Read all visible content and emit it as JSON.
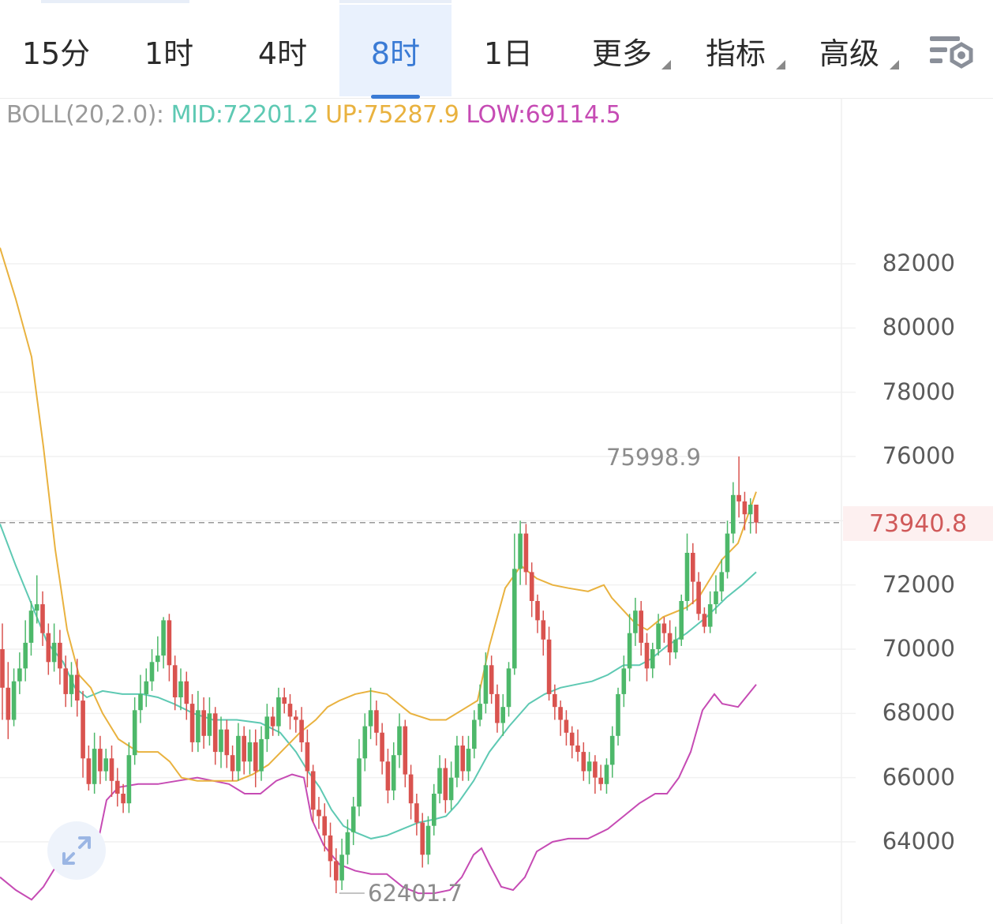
{
  "timeframe_tabs": [
    {
      "label": "15分",
      "active": false
    },
    {
      "label": "1时",
      "active": false
    },
    {
      "label": "4时",
      "active": false
    },
    {
      "label": "8时",
      "active": true
    },
    {
      "label": "1日",
      "active": false
    },
    {
      "label": "更多",
      "active": false,
      "dropdown": true
    },
    {
      "label": "指标",
      "active": false,
      "dropdown": true
    },
    {
      "label": "高级",
      "active": false,
      "dropdown": true
    }
  ],
  "settings_icon": "chart-settings-icon",
  "expand_icon": "expand-arrows-icon",
  "legend": {
    "name": "BOLL(20,2.0):",
    "mid": "MID:72201.2",
    "up": "UP:75287.9",
    "low": "LOW:69114.5"
  },
  "current_price": "73940.8",
  "max_label": "75998.9",
  "min_label": "62401.7",
  "colors": {
    "up_candle": "#4db86a",
    "down_candle": "#d9534f",
    "mid": "#5ec9b3",
    "upper": "#e9b23f",
    "lower": "#c64bb4",
    "active_tab": "#3a7bd5",
    "current_price": "#d05959"
  },
  "chart_data": {
    "type": "candlestick",
    "indicator": "BOLL(20,2.0)",
    "y_ticks": [
      82000,
      80000,
      78000,
      76000,
      74000,
      72000,
      70000,
      68000,
      66000,
      64000
    ],
    "y_tick_labels": [
      "82000",
      "80000",
      "78000",
      "76000",
      "72000",
      "70000",
      "68000",
      "66000",
      "64000"
    ],
    "ylim": [
      61800,
      84300
    ],
    "current_price": 73940.8,
    "max": 75998.9,
    "min": 62401.7,
    "candles": [
      [
        70000,
        68800,
        70800,
        67800
      ],
      [
        68800,
        67800,
        69600,
        67200
      ],
      [
        67800,
        69000,
        69400,
        67600
      ],
      [
        69000,
        69400,
        69900,
        68600
      ],
      [
        69400,
        70200,
        70900,
        69000
      ],
      [
        70200,
        71200,
        71500,
        69800
      ],
      [
        71200,
        71400,
        72300,
        70800
      ],
      [
        71400,
        70500,
        71800,
        70100
      ],
      [
        70500,
        69600,
        70800,
        69200
      ],
      [
        69600,
        70200,
        70800,
        69300
      ],
      [
        70200,
        69400,
        70600,
        68900
      ],
      [
        69400,
        68600,
        69800,
        68200
      ],
      [
        68600,
        69200,
        69600,
        68200
      ],
      [
        69200,
        68400,
        69700,
        67900
      ],
      [
        68400,
        66600,
        68700,
        66000
      ],
      [
        66600,
        65800,
        67000,
        65600
      ],
      [
        65800,
        66900,
        67400,
        65500
      ],
      [
        66900,
        66200,
        67300,
        65800
      ],
      [
        66200,
        66600,
        66900,
        65900
      ],
      [
        66600,
        65900,
        67000,
        65400
      ],
      [
        65900,
        65500,
        66300,
        65100
      ],
      [
        65500,
        65200,
        65800,
        64900
      ],
      [
        65200,
        66700,
        67100,
        64900
      ],
      [
        66700,
        68100,
        68500,
        66400
      ],
      [
        68100,
        68600,
        69200,
        67700
      ],
      [
        68600,
        69000,
        69400,
        68200
      ],
      [
        69000,
        69600,
        70000,
        68700
      ],
      [
        69600,
        69800,
        70400,
        69300
      ],
      [
        69800,
        70900,
        71000,
        69400
      ],
      [
        70900,
        69500,
        71100,
        69000
      ],
      [
        69500,
        68500,
        69800,
        68100
      ],
      [
        68500,
        69000,
        69400,
        68100
      ],
      [
        69000,
        68300,
        69300,
        67800
      ],
      [
        68300,
        67100,
        68600,
        66800
      ],
      [
        67100,
        68100,
        68700,
        66800
      ],
      [
        68100,
        67300,
        68500,
        66900
      ],
      [
        67300,
        68000,
        68500,
        67000
      ],
      [
        68000,
        66800,
        68200,
        66400
      ],
      [
        66800,
        67500,
        67900,
        66300
      ],
      [
        67500,
        66700,
        67800,
        66300
      ],
      [
        66700,
        66200,
        67000,
        65900
      ],
      [
        66200,
        67300,
        67700,
        65900
      ],
      [
        67300,
        66500,
        67600,
        66100
      ],
      [
        66500,
        67100,
        67500,
        66100
      ],
      [
        67100,
        66200,
        67500,
        65700
      ],
      [
        66200,
        67200,
        67600,
        65900
      ],
      [
        67200,
        67900,
        68300,
        66800
      ],
      [
        67900,
        67600,
        68200,
        67300
      ],
      [
        67600,
        68500,
        68800,
        67300
      ],
      [
        68500,
        68300,
        68800,
        68000
      ],
      [
        68300,
        67900,
        68600,
        67500
      ],
      [
        67900,
        67800,
        68100,
        67400
      ],
      [
        67800,
        67100,
        68200,
        66800
      ],
      [
        67100,
        66200,
        67500,
        65700
      ],
      [
        66200,
        65000,
        66400,
        64600
      ],
      [
        65000,
        64800,
        65400,
        64400
      ],
      [
        64800,
        64200,
        65200,
        63700
      ],
      [
        64200,
        63400,
        64600,
        62900
      ],
      [
        63400,
        62800,
        63800,
        62401.7
      ],
      [
        62800,
        63600,
        64100,
        62500
      ],
      [
        63600,
        64300,
        64700,
        63300
      ],
      [
        64300,
        65100,
        65400,
        63900
      ],
      [
        65100,
        66600,
        67200,
        64800
      ],
      [
        66600,
        67600,
        68000,
        66200
      ],
      [
        67600,
        68100,
        68800,
        67200
      ],
      [
        68100,
        67400,
        68400,
        67000
      ],
      [
        67400,
        66500,
        67700,
        66100
      ],
      [
        66500,
        65600,
        66900,
        65200
      ],
      [
        65600,
        66700,
        67100,
        65300
      ],
      [
        66700,
        67600,
        68000,
        66300
      ],
      [
        67600,
        66100,
        67800,
        65700
      ],
      [
        66100,
        65200,
        66400,
        64700
      ],
      [
        65200,
        64600,
        65500,
        64200
      ],
      [
        64600,
        63600,
        64900,
        63200
      ],
      [
        63600,
        64500,
        64800,
        63300
      ],
      [
        64500,
        65500,
        65800,
        64200
      ],
      [
        65500,
        66300,
        66700,
        65200
      ],
      [
        66300,
        65300,
        66600,
        64900
      ],
      [
        65300,
        66000,
        66500,
        65000
      ],
      [
        66000,
        67000,
        67300,
        65700
      ],
      [
        67000,
        66200,
        67300,
        65900
      ],
      [
        66200,
        66900,
        67300,
        65900
      ],
      [
        66900,
        67800,
        68100,
        66600
      ],
      [
        67800,
        68300,
        68900,
        67600
      ],
      [
        68300,
        69500,
        69900,
        68000
      ],
      [
        69500,
        68600,
        69800,
        68300
      ],
      [
        68600,
        67700,
        68900,
        67400
      ],
      [
        67700,
        68200,
        68600,
        67300
      ],
      [
        68200,
        69400,
        69600,
        67900
      ],
      [
        69400,
        72500,
        73600,
        69200
      ],
      [
        72500,
        73600,
        74000,
        72000
      ],
      [
        73600,
        72400,
        73900,
        72000
      ],
      [
        72400,
        71500,
        72700,
        71000
      ],
      [
        71500,
        70900,
        71700,
        70500
      ],
      [
        70900,
        70300,
        71200,
        69800
      ],
      [
        70300,
        68600,
        70700,
        68400
      ],
      [
        68600,
        68200,
        68900,
        67800
      ],
      [
        68200,
        67800,
        68400,
        67300
      ],
      [
        67800,
        67400,
        68100,
        67000
      ],
      [
        67400,
        67000,
        67600,
        66600
      ],
      [
        67000,
        66800,
        67500,
        66500
      ],
      [
        66800,
        66200,
        67100,
        65900
      ],
      [
        66200,
        66500,
        66800,
        65800
      ],
      [
        66500,
        66000,
        66700,
        65500
      ],
      [
        66000,
        65800,
        66400,
        65600
      ],
      [
        65800,
        66400,
        66600,
        65500
      ],
      [
        66400,
        67300,
        67600,
        66000
      ],
      [
        67300,
        68600,
        68800,
        67000
      ],
      [
        68600,
        69400,
        69800,
        68200
      ],
      [
        69400,
        70500,
        71100,
        69000
      ],
      [
        70500,
        71200,
        71600,
        70100
      ],
      [
        71200,
        70200,
        71500,
        69800
      ],
      [
        70200,
        69400,
        70500,
        69000
      ],
      [
        69400,
        70000,
        70200,
        69100
      ],
      [
        70000,
        70800,
        71100,
        69800
      ],
      [
        70800,
        70500,
        71000,
        70200
      ],
      [
        70500,
        69900,
        70900,
        69500
      ],
      [
        69900,
        70300,
        70700,
        69700
      ],
      [
        70300,
        71500,
        71700,
        70100
      ],
      [
        71500,
        73000,
        73600,
        71200
      ],
      [
        73000,
        72100,
        73300,
        71400
      ],
      [
        72100,
        71100,
        72400,
        70900
      ],
      [
        71100,
        70700,
        71300,
        70500
      ],
      [
        70700,
        71400,
        71800,
        70500
      ],
      [
        71400,
        71800,
        72300,
        71100
      ],
      [
        71800,
        72400,
        72800,
        71500
      ],
      [
        72400,
        73600,
        74000,
        72200
      ],
      [
        73600,
        74800,
        75200,
        73300
      ],
      [
        74800,
        74600,
        76000,
        74100
      ],
      [
        74600,
        74200,
        74900,
        73700
      ],
      [
        74200,
        74500,
        74700,
        73600
      ],
      [
        74500,
        73940.8,
        74300,
        73600
      ]
    ],
    "bands": {
      "mid": [
        [
          0,
          73900
        ],
        [
          20,
          72600
        ],
        [
          40,
          71400
        ],
        [
          60,
          70200
        ],
        [
          80,
          69600
        ],
        [
          95,
          68800
        ],
        [
          110,
          68500
        ],
        [
          130,
          68700
        ],
        [
          155,
          68600
        ],
        [
          180,
          68600
        ],
        [
          200,
          68500
        ],
        [
          220,
          68300
        ],
        [
          245,
          68000
        ],
        [
          270,
          67800
        ],
        [
          300,
          67800
        ],
        [
          330,
          67700
        ],
        [
          355,
          67400
        ],
        [
          375,
          66800
        ],
        [
          390,
          66200
        ],
        [
          405,
          65700
        ],
        [
          420,
          65000
        ],
        [
          435,
          64500
        ],
        [
          450,
          64300
        ],
        [
          470,
          64100
        ],
        [
          490,
          64200
        ],
        [
          510,
          64400
        ],
        [
          530,
          64600
        ],
        [
          550,
          64700
        ],
        [
          565,
          64800
        ],
        [
          580,
          65200
        ],
        [
          600,
          65900
        ],
        [
          620,
          66800
        ],
        [
          645,
          67600
        ],
        [
          670,
          68300
        ],
        [
          690,
          68600
        ],
        [
          710,
          68800
        ],
        [
          730,
          68900
        ],
        [
          750,
          69000
        ],
        [
          770,
          69200
        ],
        [
          790,
          69500
        ],
        [
          810,
          69500
        ],
        [
          825,
          69700
        ],
        [
          845,
          70100
        ],
        [
          870,
          70500
        ],
        [
          895,
          71000
        ],
        [
          920,
          71600
        ],
        [
          940,
          72000
        ],
        [
          958,
          72400
        ]
      ],
      "upper": [
        [
          0,
          82500
        ],
        [
          20,
          80900
        ],
        [
          40,
          79100
        ],
        [
          55,
          76300
        ],
        [
          70,
          73100
        ],
        [
          85,
          70600
        ],
        [
          100,
          69200
        ],
        [
          115,
          68800
        ],
        [
          130,
          68000
        ],
        [
          150,
          67200
        ],
        [
          175,
          66800
        ],
        [
          200,
          66800
        ],
        [
          215,
          66500
        ],
        [
          230,
          66000
        ],
        [
          250,
          65900
        ],
        [
          270,
          65900
        ],
        [
          300,
          65900
        ],
        [
          320,
          66100
        ],
        [
          340,
          66400
        ],
        [
          360,
          66900
        ],
        [
          380,
          67400
        ],
        [
          400,
          67800
        ],
        [
          415,
          68200
        ],
        [
          430,
          68400
        ],
        [
          450,
          68600
        ],
        [
          470,
          68700
        ],
        [
          490,
          68600
        ],
        [
          505,
          68300
        ],
        [
          520,
          68000
        ],
        [
          545,
          67800
        ],
        [
          565,
          67800
        ],
        [
          585,
          68100
        ],
        [
          605,
          68400
        ],
        [
          620,
          70100
        ],
        [
          640,
          71900
        ],
        [
          660,
          72600
        ],
        [
          680,
          72200
        ],
        [
          700,
          72000
        ],
        [
          720,
          71900
        ],
        [
          745,
          71800
        ],
        [
          765,
          72000
        ],
        [
          775,
          71600
        ],
        [
          790,
          71200
        ],
        [
          805,
          70800
        ],
        [
          820,
          70600
        ],
        [
          840,
          71000
        ],
        [
          870,
          71300
        ],
        [
          885,
          71600
        ],
        [
          900,
          72200
        ],
        [
          915,
          72800
        ],
        [
          935,
          73300
        ],
        [
          958,
          74900
        ]
      ],
      "lower": [
        [
          0,
          62900
        ],
        [
          20,
          62500
        ],
        [
          40,
          62200
        ],
        [
          55,
          62600
        ],
        [
          75,
          63400
        ],
        [
          90,
          63800
        ],
        [
          110,
          63900
        ],
        [
          125,
          64100
        ],
        [
          135,
          65300
        ],
        [
          150,
          65700
        ],
        [
          175,
          65800
        ],
        [
          200,
          65800
        ],
        [
          225,
          65900
        ],
        [
          250,
          66000
        ],
        [
          270,
          65900
        ],
        [
          290,
          65800
        ],
        [
          310,
          65500
        ],
        [
          330,
          65500
        ],
        [
          350,
          65900
        ],
        [
          370,
          66100
        ],
        [
          385,
          66000
        ],
        [
          395,
          64700
        ],
        [
          410,
          63900
        ],
        [
          430,
          63300
        ],
        [
          450,
          63100
        ],
        [
          470,
          63000
        ],
        [
          490,
          63000
        ],
        [
          510,
          62600
        ],
        [
          530,
          62400
        ],
        [
          550,
          62400
        ],
        [
          570,
          62500
        ],
        [
          585,
          62900
        ],
        [
          600,
          63600
        ],
        [
          610,
          63800
        ],
        [
          620,
          63300
        ],
        [
          635,
          62600
        ],
        [
          650,
          62500
        ],
        [
          665,
          62900
        ],
        [
          680,
          63700
        ],
        [
          700,
          64000
        ],
        [
          720,
          64100
        ],
        [
          745,
          64100
        ],
        [
          770,
          64400
        ],
        [
          790,
          64800
        ],
        [
          810,
          65200
        ],
        [
          830,
          65500
        ],
        [
          845,
          65500
        ],
        [
          860,
          66000
        ],
        [
          875,
          66800
        ],
        [
          890,
          68100
        ],
        [
          905,
          68600
        ],
        [
          915,
          68300
        ],
        [
          935,
          68200
        ],
        [
          958,
          68900
        ]
      ]
    }
  }
}
